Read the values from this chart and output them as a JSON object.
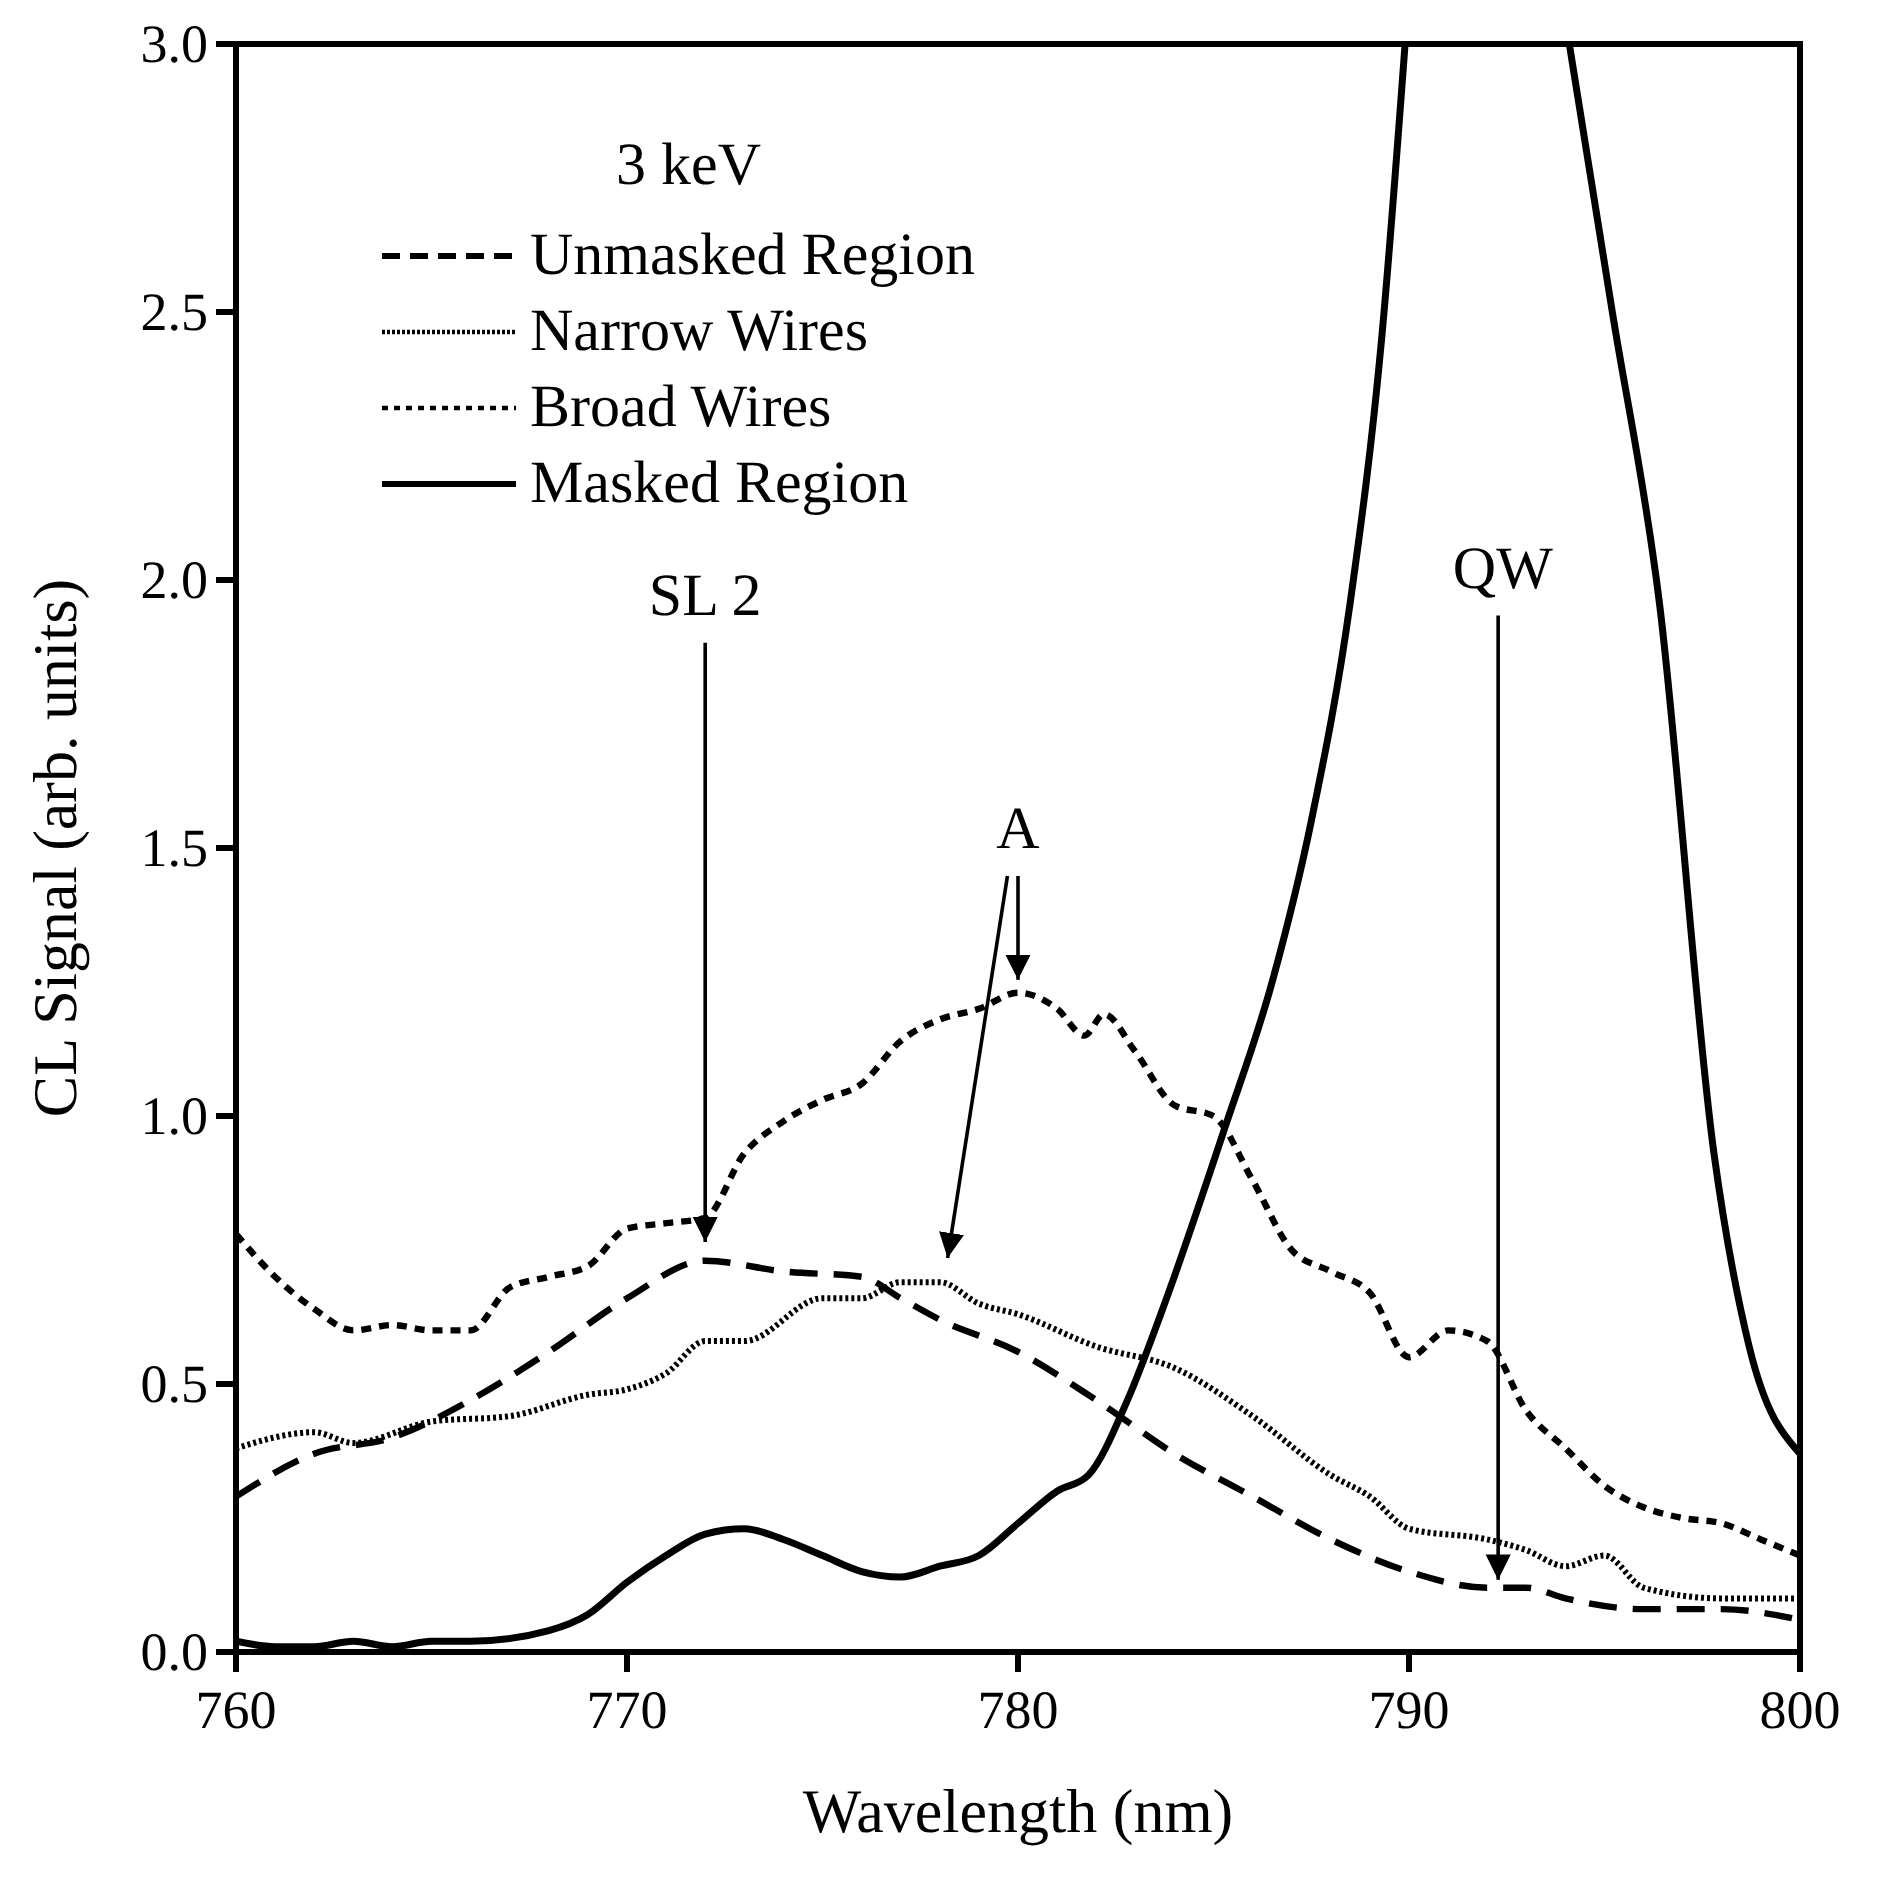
{
  "chart_data": {
    "type": "line",
    "xlabel": "Wavelength (nm)",
    "ylabel": "CL Signal (arb. units)",
    "legend_title": "3 keV",
    "legend": "top left",
    "grid": false,
    "xlim": [
      760,
      800
    ],
    "xticks": [
      760,
      770,
      780,
      790,
      800
    ],
    "ylim": [
      0,
      3
    ],
    "yticks": [
      {
        "value": 0,
        "label": "0.0"
      },
      {
        "value": 0.5,
        "label": "0.5"
      },
      {
        "value": 1,
        "label": "1.0"
      },
      {
        "value": 1.5,
        "label": "1.5"
      },
      {
        "value": 2,
        "label": "2.0"
      },
      {
        "value": 2.5,
        "label": "2.5"
      },
      {
        "value": 3,
        "label": "3.0"
      }
    ],
    "series": [
      {
        "name": "Unmasked Region",
        "color": "#000000",
        "line_style": "dashed",
        "x": [
          760,
          762,
          764,
          766,
          768,
          770,
          772,
          774,
          776,
          777,
          778,
          780,
          782,
          784,
          786,
          788,
          790,
          792,
          793,
          794,
          796,
          798,
          800
        ],
        "values": [
          0.29,
          0.37,
          0.4,
          0.47,
          0.56,
          0.66,
          0.73,
          0.71,
          0.7,
          0.66,
          0.62,
          0.56,
          0.47,
          0.37,
          0.29,
          0.21,
          0.15,
          0.12,
          0.12,
          0.1,
          0.08,
          0.08,
          0.06
        ]
      },
      {
        "name": "Narrow Wires",
        "color": "#000000",
        "line_style": "dotted",
        "x": [
          760,
          762,
          763,
          765,
          767,
          769,
          770,
          771,
          772,
          773,
          775,
          776,
          777,
          778,
          779,
          780,
          782,
          784,
          786,
          788,
          789,
          790,
          792,
          793,
          794,
          795,
          796,
          798,
          800
        ],
        "values": [
          0.38,
          0.41,
          0.39,
          0.43,
          0.44,
          0.48,
          0.49,
          0.52,
          0.58,
          0.58,
          0.66,
          0.66,
          0.69,
          0.69,
          0.65,
          0.63,
          0.57,
          0.53,
          0.44,
          0.33,
          0.29,
          0.23,
          0.21,
          0.19,
          0.16,
          0.18,
          0.12,
          0.1,
          0.1
        ]
      },
      {
        "name": "Broad Wires",
        "color": "#000000",
        "line_style": "dotted",
        "x": [
          760,
          761,
          762,
          763,
          764,
          765,
          766,
          767,
          768,
          769,
          770,
          771,
          772,
          773,
          774,
          775,
          776,
          777,
          778,
          779,
          780,
          781,
          781.7,
          782.2,
          783,
          784,
          785,
          786,
          787,
          788,
          789,
          790,
          791,
          792,
          793,
          794,
          795,
          796,
          797,
          798,
          799,
          800
        ],
        "values": [
          0.78,
          0.7,
          0.64,
          0.6,
          0.61,
          0.6,
          0.6,
          0.68,
          0.7,
          0.72,
          0.79,
          0.8,
          0.81,
          0.93,
          0.99,
          1.03,
          1.06,
          1.14,
          1.18,
          1.2,
          1.23,
          1.2,
          1.15,
          1.19,
          1.12,
          1.02,
          1,
          0.88,
          0.75,
          0.71,
          0.67,
          0.55,
          0.6,
          0.58,
          0.45,
          0.38,
          0.31,
          0.27,
          0.25,
          0.24,
          0.21,
          0.18
        ]
      },
      {
        "name": "Masked Region",
        "color": "#000000",
        "line_style": "solid",
        "x": [
          760,
          761,
          762,
          763,
          764,
          765,
          766,
          768,
          769,
          770,
          771,
          772,
          773,
          774,
          775,
          776,
          777,
          778,
          779,
          780,
          781,
          781.8,
          782.8,
          783.7,
          785.3,
          786.5,
          787.5,
          788.5,
          789.3,
          789.9,
          792,
          794.1,
          795.2,
          796.4,
          797.8,
          798.7,
          800
        ],
        "values": [
          0.02,
          0.01,
          0.01,
          0.02,
          0.01,
          0.02,
          0.02,
          0.04,
          0.07,
          0.13,
          0.18,
          0.22,
          0.23,
          0.21,
          0.18,
          0.15,
          0.14,
          0.16,
          0.18,
          0.24,
          0.3,
          0.33,
          0.47,
          0.64,
          0.98,
          1.25,
          1.55,
          1.96,
          2.45,
          3,
          null,
          3,
          2.5,
          1.96,
          0.93,
          0.57,
          0.37
        ]
      }
    ],
    "annotations": [
      "SL 2",
      "A",
      "QW"
    ]
  }
}
